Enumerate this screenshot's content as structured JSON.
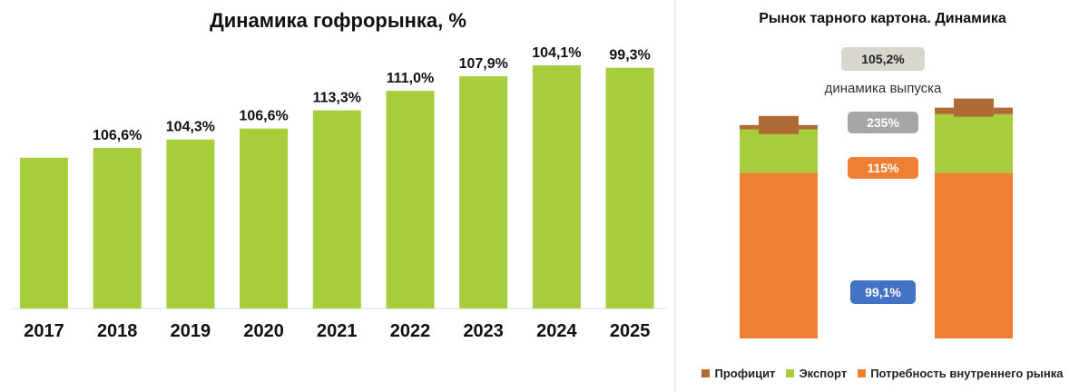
{
  "chart_data": [
    {
      "type": "bar",
      "title": "Динамика гофрорынка, %",
      "categories": [
        "2017",
        "2018",
        "2019",
        "2020",
        "2021",
        "2022",
        "2023",
        "2024",
        "2025"
      ],
      "values": [
        null,
        106.6,
        104.3,
        106.6,
        113.3,
        111.0,
        107.9,
        104.1,
        99.3
      ],
      "data_labels": [
        "",
        "106,6%",
        "104,3%",
        "106,6%",
        "113,3%",
        "111,0%",
        "107,9%",
        "104,1%",
        "99,3%"
      ],
      "bar_levels": [
        0.62,
        0.66,
        0.695,
        0.74,
        0.815,
        0.895,
        0.955,
        1.0,
        0.99
      ],
      "axis_labels_shown": false,
      "grid": false,
      "colors": {
        "bar": "#a6cd3b",
        "axis": "#dddddd",
        "text": "#111111"
      }
    },
    {
      "type": "bar",
      "stacked": true,
      "title": "Рынок тарного картона. Динамика",
      "categories": [
        "",
        ""
      ],
      "series": [
        {
          "name": "Потребность внутреннего рынка",
          "color": "#ef7f33",
          "values": [
            0.76,
            0.76
          ]
        },
        {
          "name": "Экспорт",
          "color": "#a6cd3b",
          "values": [
            0.2,
            0.27
          ]
        },
        {
          "name": "Профицит",
          "color": "#b06a35",
          "values": [
            0.02,
            0.03
          ]
        }
      ],
      "annotations": [
        {
          "text": "105,2%",
          "style": "gray-light"
        },
        {
          "text": "динамика выпуска",
          "style": "plain"
        },
        {
          "text": "235%",
          "style": "gray-dark"
        },
        {
          "text": "115%",
          "style": "orange"
        },
        {
          "text": "99,1%",
          "style": "blue"
        }
      ],
      "legend_position": "bottom",
      "colors": {
        "gray-light": "#d9d6cf",
        "gray-dark": "#a6a6a6",
        "orange": "#ef7f33",
        "blue": "#4472c4"
      }
    }
  ]
}
